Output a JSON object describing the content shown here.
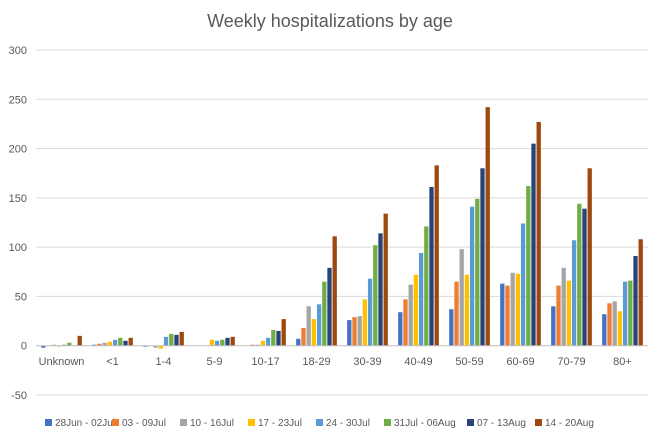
{
  "chart_data": {
    "type": "bar",
    "title": "Weekly hospitalizations by age",
    "xlabel": "",
    "ylabel": "",
    "ylim": [
      -50,
      300
    ],
    "yticks": [
      -50,
      0,
      50,
      100,
      150,
      200,
      250,
      300
    ],
    "grid": true,
    "legend_position": "bottom",
    "categories": [
      "Unknown",
      "<1",
      "1-4",
      "5-9",
      "10-17",
      "18-29",
      "30-39",
      "40-49",
      "50-59",
      "60-69",
      "70-79",
      "80+"
    ],
    "series": [
      {
        "name": "28Jun - 02Jul",
        "color": "#4472c4",
        "values": [
          -2,
          1,
          -1,
          0,
          0,
          7,
          26,
          34,
          37,
          63,
          40,
          32
        ]
      },
      {
        "name": "03 - 09Jul",
        "color": "#ed7d31",
        "values": [
          0,
          2,
          0,
          0,
          1,
          18,
          29,
          47,
          65,
          61,
          61,
          43
        ]
      },
      {
        "name": "10 - 16Jul",
        "color": "#a5a5a5",
        "values": [
          1,
          3,
          -2,
          0,
          1,
          40,
          30,
          62,
          98,
          74,
          79,
          45
        ]
      },
      {
        "name": "17 - 23Jul",
        "color": "#ffc000",
        "values": [
          -1,
          4,
          -3,
          6,
          5,
          27,
          47,
          72,
          72,
          73,
          66,
          35
        ]
      },
      {
        "name": "24 - 30Jul",
        "color": "#5b9bd5",
        "values": [
          1,
          6,
          9,
          5,
          8,
          42,
          68,
          94,
          141,
          124,
          107,
          65
        ]
      },
      {
        "name": "31Jul - 06Aug",
        "color": "#70ad47",
        "values": [
          3,
          8,
          12,
          6,
          16,
          65,
          102,
          121,
          149,
          162,
          144,
          66
        ]
      },
      {
        "name": "07 - 13Aug",
        "color": "#264478",
        "values": [
          0,
          5,
          11,
          8,
          15,
          79,
          114,
          161,
          180,
          205,
          139,
          91
        ]
      },
      {
        "name": "14 - 20Aug",
        "color": "#9e480e",
        "values": [
          10,
          8,
          14,
          9,
          27,
          111,
          134,
          183,
          242,
          227,
          180,
          108
        ]
      }
    ]
  }
}
